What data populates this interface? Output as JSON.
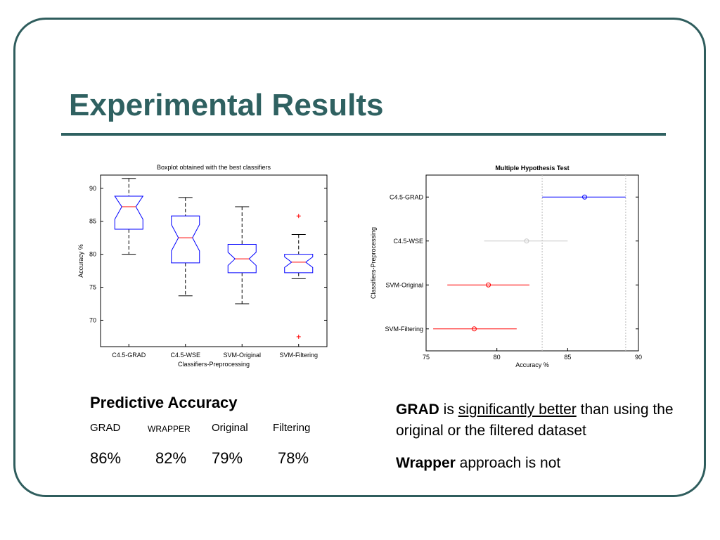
{
  "slide": {
    "title": "Experimental Results"
  },
  "predictive_accuracy": {
    "title": "Predictive Accuracy",
    "columns": [
      {
        "header": "GRAD",
        "value": "86%"
      },
      {
        "header": "WRAPPER",
        "value": "82%"
      },
      {
        "header": "Original",
        "value": "79%"
      },
      {
        "header": "Filtering",
        "value": "78%"
      }
    ]
  },
  "notes": {
    "line1_bold": "GRAD",
    "line1_mid": " is ",
    "line1_underline": "significantly better",
    "line1_rest": " than using the original or the filtered dataset",
    "line2_bold": "Wrapper",
    "line2_rest": " approach is not"
  },
  "chart_data": [
    {
      "type": "boxplot",
      "title": "Boxplot obtained with the best classifiers",
      "xlabel": "Classifiers-Preprocessing",
      "ylabel": "Accuracy %",
      "categories": [
        "C4.5-GRAD",
        "C4.5-WSE",
        "SVM-Original",
        "SVM-Filtering"
      ],
      "ylim": [
        66,
        92
      ],
      "yticks": [
        70,
        75,
        80,
        85,
        90
      ],
      "box_color": "#0000ff",
      "median_color": "#ff0000",
      "whisker_color": "#000000",
      "boxes": [
        {
          "whisker_low": 80.0,
          "q1": 83.8,
          "notch_low": 85.3,
          "median": 87.2,
          "notch_high": 88.8,
          "q3": 88.8,
          "whisker_high": 91.5,
          "outliers": []
        },
        {
          "whisker_low": 73.7,
          "q1": 78.7,
          "notch_low": 80.5,
          "median": 82.5,
          "notch_high": 84.5,
          "q3": 85.8,
          "whisker_high": 88.6,
          "outliers": []
        },
        {
          "whisker_low": 72.5,
          "q1": 77.2,
          "notch_low": 78.3,
          "median": 79.3,
          "notch_high": 80.3,
          "q3": 81.5,
          "whisker_high": 87.2,
          "outliers": []
        },
        {
          "whisker_low": 76.3,
          "q1": 77.2,
          "notch_low": 78.0,
          "median": 78.8,
          "notch_high": 79.6,
          "q3": 80.0,
          "whisker_high": 83.0,
          "outliers": [
            85.8,
            67.5
          ]
        }
      ]
    },
    {
      "type": "interval",
      "title": "Multiple Hypothesis Test",
      "xlabel": "Accuracy %",
      "ylabel": "Classifiers-Preprocessing",
      "categories": [
        "C4.5-GRAD",
        "C4.5-WSE",
        "SVM-Original",
        "SVM-Filtering"
      ],
      "xlim": [
        75,
        90
      ],
      "xticks": [
        75,
        80,
        85,
        90
      ],
      "reference_lines": [
        83.2,
        89.1
      ],
      "intervals": [
        {
          "label": "C4.5-GRAD",
          "mean": 86.2,
          "low": 83.2,
          "high": 89.1,
          "color": "#0000ff"
        },
        {
          "label": "C4.5-WSE",
          "mean": 82.1,
          "low": 79.1,
          "high": 85.0,
          "color": "#c8c8c8"
        },
        {
          "label": "SVM-Original",
          "mean": 79.4,
          "low": 76.5,
          "high": 82.3,
          "color": "#ff0000"
        },
        {
          "label": "SVM-Filtering",
          "mean": 78.4,
          "low": 75.5,
          "high": 81.4,
          "color": "#ff0000"
        }
      ]
    }
  ]
}
